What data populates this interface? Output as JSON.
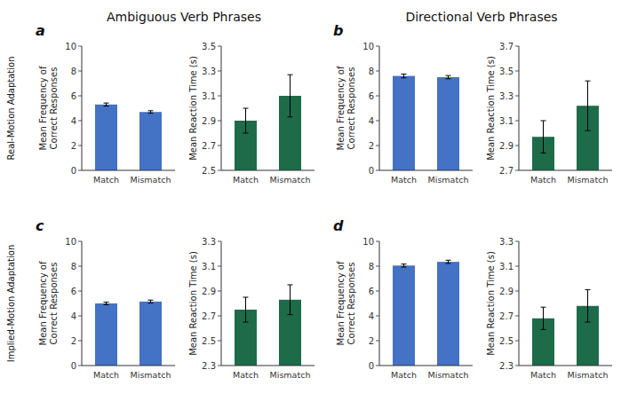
{
  "chart_data": [
    {
      "type": "bar",
      "title": "Ambiguous Verb Phrases",
      "annotations": [
        "a",
        "Real-Motion Adaptation"
      ],
      "categories": [
        "Match",
        "Mismatch"
      ],
      "values": [
        5.3,
        4.7
      ],
      "errors": [
        0.12,
        0.1
      ],
      "color": "#4472C4",
      "y_label": "Mean Frequency of\nCorrect Responses",
      "ylim": [
        0,
        10
      ],
      "yticks": [
        0,
        2,
        4,
        6,
        8,
        10
      ],
      "grid": false
    },
    {
      "type": "bar",
      "categories": [
        "Match",
        "Mismatch"
      ],
      "values": [
        2.9,
        3.1
      ],
      "errors": [
        0.1,
        0.17
      ],
      "color": "#1E6B4A",
      "y_label": "Mean Reaction Time (s)",
      "ylim": [
        2.5,
        3.5
      ],
      "yticks": [
        2.5,
        2.7,
        2.9,
        3.1,
        3.3,
        3.5
      ],
      "grid": false
    },
    {
      "type": "bar",
      "title": "Directional Verb Phrases",
      "annotations": [
        "b"
      ],
      "categories": [
        "Match",
        "Mismatch"
      ],
      "values": [
        7.6,
        7.5
      ],
      "errors": [
        0.15,
        0.13
      ],
      "color": "#4472C4",
      "y_label": "Mean Frequency of\nCorrect Responses",
      "ylim": [
        0,
        10
      ],
      "yticks": [
        0,
        2,
        4,
        6,
        8,
        10
      ],
      "grid": false
    },
    {
      "type": "bar",
      "categories": [
        "Match",
        "Mismatch"
      ],
      "values": [
        2.97,
        3.22
      ],
      "errors": [
        0.13,
        0.2
      ],
      "color": "#1E6B4A",
      "y_label": "Mean Reaction Time (s)",
      "ylim": [
        2.7,
        3.7
      ],
      "yticks": [
        2.7,
        2.9,
        3.1,
        3.3,
        3.5,
        3.7
      ],
      "grid": false
    },
    {
      "type": "bar",
      "annotations": [
        "c",
        "Implied-Motion Adaptation"
      ],
      "categories": [
        "Match",
        "Mismatch"
      ],
      "values": [
        5.0,
        5.15
      ],
      "errors": [
        0.1,
        0.12
      ],
      "color": "#4472C4",
      "y_label": "Mean Frequency of\nCorrect Responses",
      "ylim": [
        0,
        10
      ],
      "yticks": [
        0,
        2,
        4,
        6,
        8,
        10
      ],
      "grid": false
    },
    {
      "type": "bar",
      "categories": [
        "Match",
        "Mismatch"
      ],
      "values": [
        2.75,
        2.83
      ],
      "errors": [
        0.1,
        0.12
      ],
      "color": "#1E6B4A",
      "y_label": "Mean Reaction Time (s)",
      "ylim": [
        2.3,
        3.3
      ],
      "yticks": [
        2.3,
        2.5,
        2.7,
        2.9,
        3.1,
        3.3
      ],
      "grid": false
    },
    {
      "type": "bar",
      "annotations": [
        "d"
      ],
      "categories": [
        "Match",
        "Mismatch"
      ],
      "values": [
        8.05,
        8.35
      ],
      "errors": [
        0.12,
        0.13
      ],
      "color": "#4472C4",
      "y_label": "Mean Frequency of\nCorrect Responses",
      "ylim": [
        0,
        10
      ],
      "yticks": [
        0,
        2,
        4,
        6,
        8,
        10
      ],
      "grid": false
    },
    {
      "type": "bar",
      "categories": [
        "Match",
        "Mismatch"
      ],
      "values": [
        2.68,
        2.78
      ],
      "errors": [
        0.09,
        0.13
      ],
      "color": "#1E6B4A",
      "y_label": "Mean Reaction Time (s)",
      "ylim": [
        2.3,
        3.3
      ],
      "yticks": [
        2.3,
        2.5,
        2.7,
        2.9,
        3.1,
        3.3
      ],
      "grid": false
    }
  ]
}
